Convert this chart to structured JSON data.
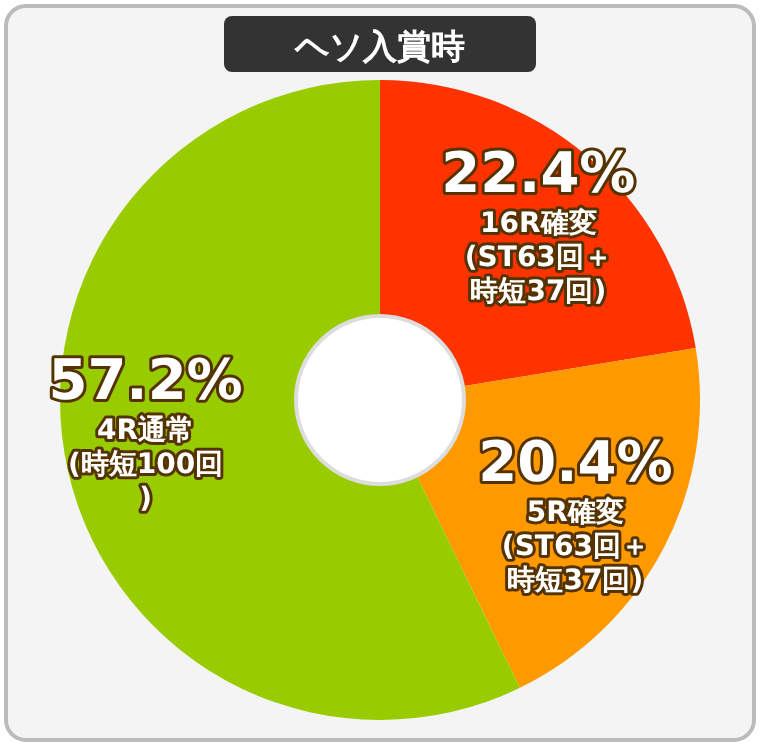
{
  "chart_data": {
    "type": "donut",
    "title": "ヘソ入賞時",
    "categories": [
      "16R確変\n(ST63回＋時短37回)",
      "5R確変\n(ST63回＋時短37回)",
      "4R通常\n(時短100回)"
    ],
    "values": [
      22.4,
      20.4,
      57.2
    ],
    "colors": [
      "#ff3300",
      "#ff9900",
      "#99cc00"
    ],
    "value_labels": [
      "22.4%",
      "20.4%",
      "57.2%"
    ]
  }
}
